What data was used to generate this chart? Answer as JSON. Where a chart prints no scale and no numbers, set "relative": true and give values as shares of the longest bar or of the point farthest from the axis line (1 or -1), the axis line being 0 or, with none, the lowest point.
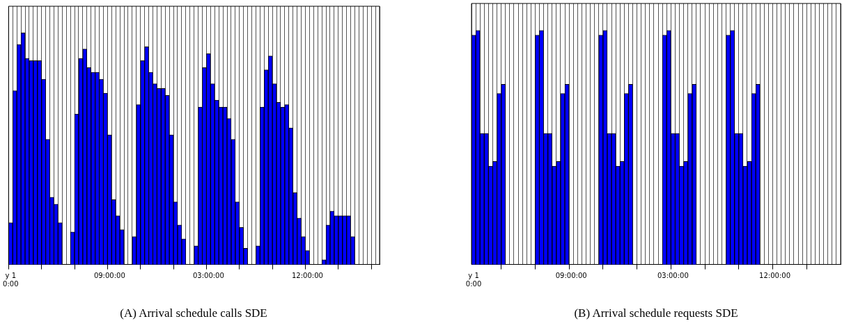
{
  "chart_data": [
    {
      "type": "bar",
      "title": "(A) Arrival schedule calls SDE",
      "relative": true,
      "grid": "x",
      "color": "#0000ff",
      "categories": [
        "y 1\n0:00",
        null,
        null,
        null,
        null,
        null,
        null,
        null,
        null,
        null,
        null,
        null,
        null,
        null,
        null,
        null,
        null,
        null,
        null,
        null,
        null,
        null,
        null,
        null,
        "09:00:00",
        null,
        null,
        null,
        null,
        null,
        null,
        null,
        null,
        null,
        null,
        null,
        null,
        null,
        null,
        null,
        null,
        null,
        null,
        null,
        null,
        null,
        null,
        null,
        "03:00:00",
        null,
        null,
        null,
        null,
        null,
        null,
        null,
        null,
        null,
        null,
        null,
        null,
        null,
        null,
        null,
        null,
        null,
        null,
        null,
        null,
        null,
        null,
        null,
        "12:00:00",
        null,
        null,
        null,
        null,
        null,
        null,
        null,
        null,
        null,
        null,
        null,
        null,
        null,
        null,
        null,
        null,
        null
      ],
      "values": [
        0.18,
        0.75,
        0.95,
        1,
        0.89,
        0.88,
        0.88,
        0.88,
        0.8,
        0.54,
        0.29,
        0.26,
        0.18,
        0,
        0,
        0.14,
        0.65,
        0.89,
        0.93,
        0.85,
        0.83,
        0.83,
        0.8,
        0.74,
        0.56,
        0.28,
        0.21,
        0.15,
        0,
        0,
        0.12,
        0.69,
        0.88,
        0.94,
        0.83,
        0.78,
        0.76,
        0.76,
        0.73,
        0.56,
        0.27,
        0.17,
        0.11,
        0,
        0,
        0.08,
        0.68,
        0.85,
        0.91,
        0.78,
        0.71,
        0.68,
        0.68,
        0.63,
        0.54,
        0.27,
        0.16,
        0.07,
        0,
        0,
        0.08,
        0.68,
        0.84,
        0.9,
        0.78,
        0.7,
        0.68,
        0.69,
        0.59,
        0.31,
        0.2,
        0.12,
        0.06,
        0,
        0,
        0,
        0.02,
        0.17,
        0.23,
        0.21,
        0.21,
        0.21,
        0.21,
        0.12,
        0,
        0,
        0,
        0,
        0,
        0
      ]
    },
    {
      "type": "bar",
      "title": "(B) Arrival schedule requests SDE",
      "relative": true,
      "grid": "x",
      "color": "#0000ff",
      "categories": [
        "y 1\n0:00",
        null,
        null,
        null,
        null,
        null,
        null,
        null,
        null,
        null,
        null,
        null,
        null,
        null,
        null,
        null,
        null,
        null,
        null,
        null,
        null,
        null,
        null,
        "09:00:00",
        null,
        null,
        null,
        null,
        null,
        null,
        null,
        null,
        null,
        null,
        null,
        null,
        null,
        null,
        null,
        null,
        null,
        null,
        null,
        null,
        null,
        null,
        null,
        "03:00:00",
        null,
        null,
        null,
        null,
        null,
        null,
        null,
        null,
        null,
        null,
        null,
        null,
        null,
        null,
        null,
        null,
        null,
        null,
        null,
        null,
        null,
        null,
        null,
        "12:00:00",
        null,
        null,
        null,
        null,
        null,
        null,
        null,
        null,
        null,
        null,
        null,
        null,
        null,
        null,
        null
      ],
      "values": [
        0.98,
        1,
        0.56,
        0.56,
        0.42,
        0.44,
        0.73,
        0.77,
        0,
        0,
        0,
        0,
        0,
        0,
        0,
        0.98,
        1,
        0.56,
        0.56,
        0.42,
        0.44,
        0.73,
        0.77,
        0,
        0,
        0,
        0,
        0,
        0,
        0,
        0.98,
        1,
        0.56,
        0.56,
        0.42,
        0.44,
        0.73,
        0.77,
        0,
        0,
        0,
        0,
        0,
        0,
        0,
        0.98,
        1,
        0.56,
        0.56,
        0.42,
        0.44,
        0.73,
        0.77,
        0,
        0,
        0,
        0,
        0,
        0,
        0,
        0.98,
        1,
        0.56,
        0.56,
        0.42,
        0.44,
        0.73,
        0.77,
        0,
        0,
        0,
        0,
        0,
        0,
        0,
        0,
        0,
        0,
        0,
        0,
        0,
        0,
        0,
        0,
        0,
        0,
        0
      ]
    }
  ]
}
